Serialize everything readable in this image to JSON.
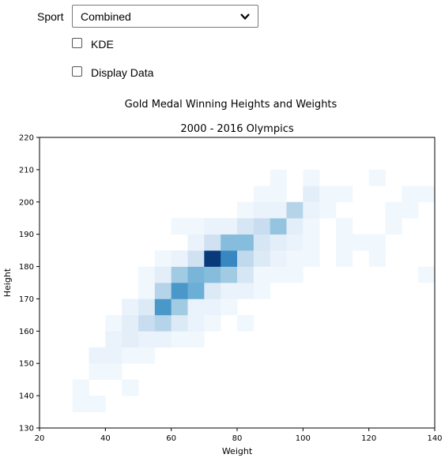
{
  "controls": {
    "sport_label": "Sport",
    "sport_value": "Combined",
    "kde_label": "KDE",
    "kde_checked": false,
    "display_data_label": "Display Data",
    "display_data_checked": false
  },
  "icons": {
    "dropdown": "chevron-down-icon"
  },
  "chart_data": {
    "type": "heatmap",
    "title": "Gold Medal Winning Heights and Weights",
    "subtitle": "2000 - 2016 Olympics",
    "xlabel": "Weight",
    "ylabel": "Height",
    "xlim": [
      20,
      140
    ],
    "ylim": [
      130,
      220
    ],
    "xticks": [
      20,
      40,
      60,
      80,
      100,
      120,
      140
    ],
    "yticks": [
      130,
      140,
      150,
      160,
      170,
      180,
      190,
      200,
      210,
      220
    ],
    "bin_width": 5,
    "bin_height": 5,
    "colormap": "Blues",
    "vmax": 30,
    "grid": false,
    "bins": [
      {
        "x": 30,
        "y": 135,
        "count": 1
      },
      {
        "x": 35,
        "y": 135,
        "count": 1
      },
      {
        "x": 30,
        "y": 140,
        "count": 1
      },
      {
        "x": 45,
        "y": 140,
        "count": 1
      },
      {
        "x": 35,
        "y": 145,
        "count": 1
      },
      {
        "x": 40,
        "y": 145,
        "count": 1
      },
      {
        "x": 35,
        "y": 150,
        "count": 2
      },
      {
        "x": 40,
        "y": 150,
        "count": 2
      },
      {
        "x": 45,
        "y": 150,
        "count": 1
      },
      {
        "x": 50,
        "y": 150,
        "count": 1
      },
      {
        "x": 40,
        "y": 155,
        "count": 2
      },
      {
        "x": 45,
        "y": 155,
        "count": 3
      },
      {
        "x": 50,
        "y": 155,
        "count": 2
      },
      {
        "x": 55,
        "y": 155,
        "count": 2
      },
      {
        "x": 60,
        "y": 155,
        "count": 1
      },
      {
        "x": 65,
        "y": 155,
        "count": 1
      },
      {
        "x": 40,
        "y": 160,
        "count": 1
      },
      {
        "x": 45,
        "y": 160,
        "count": 3
      },
      {
        "x": 50,
        "y": 160,
        "count": 7
      },
      {
        "x": 55,
        "y": 160,
        "count": 9
      },
      {
        "x": 60,
        "y": 160,
        "count": 4
      },
      {
        "x": 65,
        "y": 160,
        "count": 2
      },
      {
        "x": 70,
        "y": 160,
        "count": 1
      },
      {
        "x": 80,
        "y": 160,
        "count": 1
      },
      {
        "x": 45,
        "y": 165,
        "count": 2
      },
      {
        "x": 50,
        "y": 165,
        "count": 4
      },
      {
        "x": 55,
        "y": 165,
        "count": 18
      },
      {
        "x": 60,
        "y": 165,
        "count": 11
      },
      {
        "x": 65,
        "y": 165,
        "count": 2
      },
      {
        "x": 70,
        "y": 165,
        "count": 2
      },
      {
        "x": 75,
        "y": 165,
        "count": 1
      },
      {
        "x": 50,
        "y": 170,
        "count": 1
      },
      {
        "x": 55,
        "y": 170,
        "count": 9
      },
      {
        "x": 60,
        "y": 170,
        "count": 18
      },
      {
        "x": 65,
        "y": 170,
        "count": 15
      },
      {
        "x": 70,
        "y": 170,
        "count": 4
      },
      {
        "x": 75,
        "y": 170,
        "count": 2
      },
      {
        "x": 80,
        "y": 170,
        "count": 2
      },
      {
        "x": 85,
        "y": 170,
        "count": 1
      },
      {
        "x": 50,
        "y": 175,
        "count": 1
      },
      {
        "x": 55,
        "y": 175,
        "count": 3
      },
      {
        "x": 60,
        "y": 175,
        "count": 11
      },
      {
        "x": 65,
        "y": 175,
        "count": 14
      },
      {
        "x": 70,
        "y": 175,
        "count": 13
      },
      {
        "x": 75,
        "y": 175,
        "count": 11
      },
      {
        "x": 80,
        "y": 175,
        "count": 5
      },
      {
        "x": 85,
        "y": 175,
        "count": 1
      },
      {
        "x": 90,
        "y": 175,
        "count": 1
      },
      {
        "x": 95,
        "y": 175,
        "count": 1
      },
      {
        "x": 135,
        "y": 175,
        "count": 1
      },
      {
        "x": 55,
        "y": 180,
        "count": 1
      },
      {
        "x": 60,
        "y": 180,
        "count": 2
      },
      {
        "x": 65,
        "y": 180,
        "count": 6
      },
      {
        "x": 70,
        "y": 180,
        "count": 29
      },
      {
        "x": 75,
        "y": 180,
        "count": 20
      },
      {
        "x": 80,
        "y": 180,
        "count": 8
      },
      {
        "x": 85,
        "y": 180,
        "count": 4
      },
      {
        "x": 90,
        "y": 180,
        "count": 2
      },
      {
        "x": 95,
        "y": 180,
        "count": 1
      },
      {
        "x": 100,
        "y": 180,
        "count": 1
      },
      {
        "x": 110,
        "y": 180,
        "count": 1
      },
      {
        "x": 120,
        "y": 180,
        "count": 1
      },
      {
        "x": 65,
        "y": 185,
        "count": 2
      },
      {
        "x": 70,
        "y": 185,
        "count": 6
      },
      {
        "x": 75,
        "y": 185,
        "count": 13
      },
      {
        "x": 80,
        "y": 185,
        "count": 13
      },
      {
        "x": 85,
        "y": 185,
        "count": 5
      },
      {
        "x": 90,
        "y": 185,
        "count": 3
      },
      {
        "x": 95,
        "y": 185,
        "count": 2
      },
      {
        "x": 100,
        "y": 185,
        "count": 1
      },
      {
        "x": 110,
        "y": 185,
        "count": 1
      },
      {
        "x": 115,
        "y": 185,
        "count": 1
      },
      {
        "x": 120,
        "y": 185,
        "count": 1
      },
      {
        "x": 60,
        "y": 190,
        "count": 1
      },
      {
        "x": 65,
        "y": 190,
        "count": 1
      },
      {
        "x": 70,
        "y": 190,
        "count": 2
      },
      {
        "x": 75,
        "y": 190,
        "count": 2
      },
      {
        "x": 80,
        "y": 190,
        "count": 5
      },
      {
        "x": 85,
        "y": 190,
        "count": 7
      },
      {
        "x": 90,
        "y": 190,
        "count": 12
      },
      {
        "x": 95,
        "y": 190,
        "count": 3
      },
      {
        "x": 100,
        "y": 190,
        "count": 1
      },
      {
        "x": 110,
        "y": 190,
        "count": 1
      },
      {
        "x": 125,
        "y": 190,
        "count": 1
      },
      {
        "x": 80,
        "y": 195,
        "count": 1
      },
      {
        "x": 85,
        "y": 195,
        "count": 2
      },
      {
        "x": 90,
        "y": 195,
        "count": 2
      },
      {
        "x": 95,
        "y": 195,
        "count": 9
      },
      {
        "x": 100,
        "y": 195,
        "count": 2
      },
      {
        "x": 105,
        "y": 195,
        "count": 1
      },
      {
        "x": 125,
        "y": 195,
        "count": 1
      },
      {
        "x": 130,
        "y": 195,
        "count": 1
      },
      {
        "x": 85,
        "y": 200,
        "count": 1
      },
      {
        "x": 90,
        "y": 200,
        "count": 1
      },
      {
        "x": 100,
        "y": 200,
        "count": 3
      },
      {
        "x": 105,
        "y": 200,
        "count": 1
      },
      {
        "x": 110,
        "y": 200,
        "count": 1
      },
      {
        "x": 130,
        "y": 200,
        "count": 1
      },
      {
        "x": 135,
        "y": 200,
        "count": 1
      },
      {
        "x": 90,
        "y": 205,
        "count": 1
      },
      {
        "x": 100,
        "y": 205,
        "count": 1
      },
      {
        "x": 120,
        "y": 205,
        "count": 1
      }
    ]
  }
}
